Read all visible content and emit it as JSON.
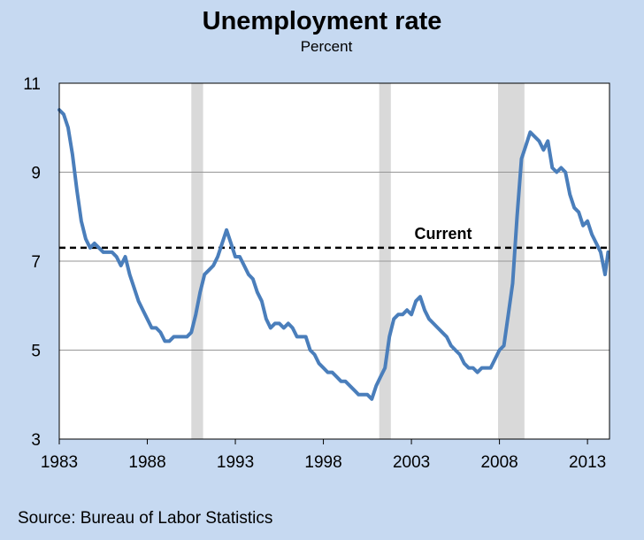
{
  "title": "Unemployment rate",
  "subtitle": "Percent",
  "source": "Source: Bureau of Labor Statistics",
  "colors": {
    "background": "#c6d9f1",
    "plot_bg": "#ffffff",
    "line": "#4a7ebb",
    "recession": "#d9d9d9",
    "grid": "#969696"
  },
  "chart_data": {
    "type": "line",
    "title": "Unemployment rate",
    "ylabel": "Percent",
    "xlim": [
      1983.0,
      2014.25
    ],
    "ylim": [
      3,
      11
    ],
    "x_ticks": [
      1983,
      1988,
      1993,
      1998,
      2003,
      2008,
      2013
    ],
    "x_tick_labels": [
      "1983",
      "1988",
      "1993",
      "1998",
      "2003",
      "2008",
      "2013"
    ],
    "y_ticks": [
      3,
      5,
      7,
      9,
      11
    ],
    "y_tick_labels": [
      "3",
      "5",
      "7",
      "9",
      "11"
    ],
    "grid": "horizontal",
    "recessions": [
      [
        1990.5,
        1991.17
      ],
      [
        2001.17,
        2001.83
      ],
      [
        2007.92,
        2009.42
      ]
    ],
    "reference_line": {
      "label": "Current",
      "value": 7.3,
      "style": "dashed"
    },
    "series": [
      {
        "x": [
          1983.0,
          1983.25,
          1983.5,
          1983.75,
          1984.0,
          1984.25,
          1984.5,
          1984.75,
          1985.0,
          1985.25,
          1985.5,
          1985.75,
          1986.0,
          1986.25,
          1986.5,
          1986.75,
          1987.0,
          1987.25,
          1987.5,
          1987.75,
          1988.0,
          1988.25,
          1988.5,
          1988.75,
          1989.0,
          1989.25,
          1989.5,
          1989.75,
          1990.0,
          1990.25,
          1990.5,
          1990.75,
          1991.0,
          1991.25,
          1991.5,
          1991.75,
          1992.0,
          1992.25,
          1992.5,
          1992.75,
          1993.0,
          1993.25,
          1993.5,
          1993.75,
          1994.0,
          1994.25,
          1994.5,
          1994.75,
          1995.0,
          1995.25,
          1995.5,
          1995.75,
          1996.0,
          1996.25,
          1996.5,
          1996.75,
          1997.0,
          1997.25,
          1997.5,
          1997.75,
          1998.0,
          1998.25,
          1998.5,
          1998.75,
          1999.0,
          1999.25,
          1999.5,
          1999.75,
          2000.0,
          2000.25,
          2000.5,
          2000.75,
          2001.0,
          2001.25,
          2001.5,
          2001.75,
          2002.0,
          2002.25,
          2002.5,
          2002.75,
          2003.0,
          2003.25,
          2003.5,
          2003.75,
          2004.0,
          2004.25,
          2004.5,
          2004.75,
          2005.0,
          2005.25,
          2005.5,
          2005.75,
          2006.0,
          2006.25,
          2006.5,
          2006.75,
          2007.0,
          2007.25,
          2007.5,
          2007.75,
          2008.0,
          2008.25,
          2008.5,
          2008.75,
          2009.0,
          2009.25,
          2009.5,
          2009.75,
          2010.0,
          2010.25,
          2010.5,
          2010.75,
          2011.0,
          2011.25,
          2011.5,
          2011.75,
          2012.0,
          2012.25,
          2012.5,
          2012.75,
          2013.0,
          2013.25,
          2013.5,
          2013.75,
          2014.0,
          2014.17
        ],
        "values": [
          10.4,
          10.3,
          10.0,
          9.4,
          8.6,
          7.9,
          7.5,
          7.3,
          7.4,
          7.3,
          7.2,
          7.2,
          7.2,
          7.1,
          6.9,
          7.1,
          6.7,
          6.4,
          6.1,
          5.9,
          5.7,
          5.5,
          5.5,
          5.4,
          5.2,
          5.2,
          5.3,
          5.3,
          5.3,
          5.3,
          5.4,
          5.8,
          6.3,
          6.7,
          6.8,
          6.9,
          7.1,
          7.4,
          7.7,
          7.4,
          7.1,
          7.1,
          6.9,
          6.7,
          6.6,
          6.3,
          6.1,
          5.7,
          5.5,
          5.6,
          5.6,
          5.5,
          5.6,
          5.5,
          5.3,
          5.3,
          5.3,
          5.0,
          4.9,
          4.7,
          4.6,
          4.5,
          4.5,
          4.4,
          4.3,
          4.3,
          4.2,
          4.1,
          4.0,
          4.0,
          4.0,
          3.9,
          4.2,
          4.4,
          4.6,
          5.3,
          5.7,
          5.8,
          5.8,
          5.9,
          5.8,
          6.1,
          6.2,
          5.9,
          5.7,
          5.6,
          5.5,
          5.4,
          5.3,
          5.1,
          5.0,
          4.9,
          4.7,
          4.6,
          4.6,
          4.5,
          4.6,
          4.6,
          4.6,
          4.8,
          5.0,
          5.1,
          5.8,
          6.5,
          8.0,
          9.3,
          9.6,
          9.9,
          9.8,
          9.7,
          9.5,
          9.7,
          9.1,
          9.0,
          9.1,
          9.0,
          8.5,
          8.2,
          8.1,
          7.8,
          7.9,
          7.6,
          7.4,
          7.2,
          6.7,
          7.2
        ]
      }
    ]
  }
}
